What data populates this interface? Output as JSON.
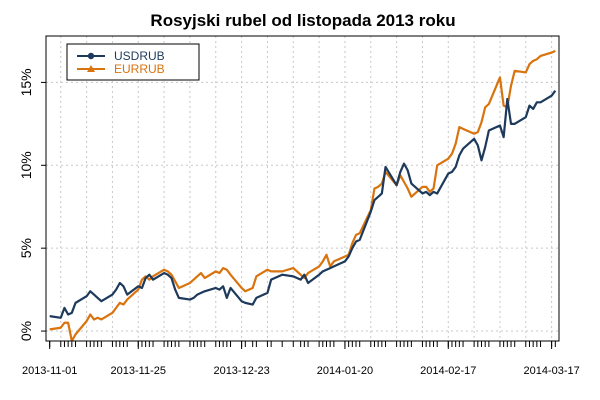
{
  "chart_data": {
    "type": "line",
    "title": "Rosyjski rubel od listopada 2013 roku",
    "xlabel": "",
    "ylabel": "",
    "y_ticks": [
      "0%",
      "5%",
      "10%",
      "15%"
    ],
    "y_tick_values": [
      0,
      5,
      10,
      15
    ],
    "ylim": [
      -0.6,
      17.8
    ],
    "x_tick_labels": [
      "2013-11-01",
      "2013-11-25",
      "2013-12-23",
      "2014-01-20",
      "2014-02-17",
      "2014-03-17"
    ],
    "x_tick_dates": [
      "2013-11-01",
      "2013-11-25",
      "2013-12-23",
      "2014-01-20",
      "2014-02-17",
      "2014-03-17"
    ],
    "x_range": [
      "2013-10-31",
      "2014-03-19"
    ],
    "grid": true,
    "legend_position": "top-left",
    "series": [
      {
        "name": "USDRUB",
        "color": "#1d3a5c",
        "marker": "circle",
        "values": [
          [
            "2013-11-01",
            0.9
          ],
          [
            "2013-11-04",
            0.8
          ],
          [
            "2013-11-05",
            1.4
          ],
          [
            "2013-11-06",
            1.0
          ],
          [
            "2013-11-07",
            1.1
          ],
          [
            "2013-11-08",
            1.7
          ],
          [
            "2013-11-11",
            2.1
          ],
          [
            "2013-11-12",
            2.4
          ],
          [
            "2013-11-13",
            2.2
          ],
          [
            "2013-11-14",
            2.0
          ],
          [
            "2013-11-15",
            1.8
          ],
          [
            "2013-11-18",
            2.2
          ],
          [
            "2013-11-19",
            2.5
          ],
          [
            "2013-11-20",
            2.9
          ],
          [
            "2013-11-21",
            2.7
          ],
          [
            "2013-11-22",
            2.2
          ],
          [
            "2013-11-25",
            2.7
          ],
          [
            "2013-11-26",
            2.6
          ],
          [
            "2013-11-27",
            3.2
          ],
          [
            "2013-11-28",
            3.4
          ],
          [
            "2013-11-29",
            3.1
          ],
          [
            "2013-12-02",
            3.5
          ],
          [
            "2013-12-03",
            3.4
          ],
          [
            "2013-12-04",
            3.2
          ],
          [
            "2013-12-05",
            2.5
          ],
          [
            "2013-12-06",
            2.0
          ],
          [
            "2013-12-09",
            1.9
          ],
          [
            "2013-12-10",
            2.0
          ],
          [
            "2013-12-11",
            2.2
          ],
          [
            "2013-12-12",
            2.3
          ],
          [
            "2013-12-13",
            2.4
          ],
          [
            "2013-12-16",
            2.6
          ],
          [
            "2013-12-17",
            2.5
          ],
          [
            "2013-12-18",
            2.7
          ],
          [
            "2013-12-19",
            2.0
          ],
          [
            "2013-12-20",
            2.6
          ],
          [
            "2013-12-23",
            1.8
          ],
          [
            "2013-12-24",
            1.7
          ],
          [
            "2013-12-26",
            1.6
          ],
          [
            "2013-12-27",
            2.0
          ],
          [
            "2013-12-30",
            2.3
          ],
          [
            "2013-12-31",
            3.1
          ],
          [
            "2014-01-03",
            3.4
          ],
          [
            "2014-01-06",
            3.3
          ],
          [
            "2014-01-08",
            3.1
          ],
          [
            "2014-01-09",
            3.4
          ],
          [
            "2014-01-10",
            2.9
          ],
          [
            "2014-01-13",
            3.4
          ],
          [
            "2014-01-14",
            3.6
          ],
          [
            "2014-01-15",
            3.7
          ],
          [
            "2014-01-16",
            3.8
          ],
          [
            "2014-01-17",
            3.9
          ],
          [
            "2014-01-20",
            4.2
          ],
          [
            "2014-01-21",
            4.5
          ],
          [
            "2014-01-22",
            5.0
          ],
          [
            "2014-01-23",
            5.4
          ],
          [
            "2014-01-24",
            5.5
          ],
          [
            "2014-01-27",
            7.2
          ],
          [
            "2014-01-28",
            7.9
          ],
          [
            "2014-01-29",
            8.1
          ],
          [
            "2014-01-30",
            8.3
          ],
          [
            "2014-01-31",
            9.9
          ],
          [
            "2014-02-03",
            8.8
          ],
          [
            "2014-02-04",
            9.6
          ],
          [
            "2014-02-05",
            10.1
          ],
          [
            "2014-02-06",
            9.7
          ],
          [
            "2014-02-07",
            8.9
          ],
          [
            "2014-02-10",
            8.3
          ],
          [
            "2014-02-11",
            8.4
          ],
          [
            "2014-02-12",
            8.2
          ],
          [
            "2014-02-13",
            8.4
          ],
          [
            "2014-02-14",
            8.3
          ],
          [
            "2014-02-17",
            9.5
          ],
          [
            "2014-02-18",
            9.6
          ],
          [
            "2014-02-19",
            9.9
          ],
          [
            "2014-02-20",
            10.6
          ],
          [
            "2014-02-21",
            11.0
          ],
          [
            "2014-02-24",
            11.6
          ],
          [
            "2014-02-25",
            11.2
          ],
          [
            "2014-02-26",
            10.3
          ],
          [
            "2014-02-27",
            11.1
          ],
          [
            "2014-02-28",
            12.1
          ],
          [
            "2014-03-03",
            12.4
          ],
          [
            "2014-03-04",
            11.7
          ],
          [
            "2014-03-05",
            14.0
          ],
          [
            "2014-03-06",
            12.5
          ],
          [
            "2014-03-07",
            12.5
          ],
          [
            "2014-03-10",
            12.9
          ],
          [
            "2014-03-11",
            13.6
          ],
          [
            "2014-03-12",
            13.4
          ],
          [
            "2014-03-13",
            13.8
          ],
          [
            "2014-03-14",
            13.8
          ],
          [
            "2014-03-17",
            14.2
          ],
          [
            "2014-03-18",
            14.5
          ]
        ]
      },
      {
        "name": "EURRUB",
        "color": "#d9730d",
        "marker": "triangle",
        "values": [
          [
            "2013-11-01",
            0.1
          ],
          [
            "2013-11-04",
            0.2
          ],
          [
            "2013-11-05",
            0.5
          ],
          [
            "2013-11-06",
            0.5
          ],
          [
            "2013-11-07",
            -0.6
          ],
          [
            "2013-11-08",
            -0.2
          ],
          [
            "2013-11-11",
            0.6
          ],
          [
            "2013-11-12",
            1.0
          ],
          [
            "2013-11-13",
            0.7
          ],
          [
            "2013-11-14",
            0.8
          ],
          [
            "2013-11-15",
            0.7
          ],
          [
            "2013-11-18",
            1.1
          ],
          [
            "2013-11-19",
            1.4
          ],
          [
            "2013-11-20",
            1.7
          ],
          [
            "2013-11-21",
            1.6
          ],
          [
            "2013-11-22",
            1.9
          ],
          [
            "2013-11-25",
            2.5
          ],
          [
            "2013-11-26",
            3.1
          ],
          [
            "2013-11-27",
            3.3
          ],
          [
            "2013-11-28",
            3.1
          ],
          [
            "2013-11-29",
            3.3
          ],
          [
            "2013-12-02",
            3.7
          ],
          [
            "2013-12-03",
            3.6
          ],
          [
            "2013-12-04",
            3.4
          ],
          [
            "2013-12-05",
            3.0
          ],
          [
            "2013-12-06",
            2.6
          ],
          [
            "2013-12-09",
            2.9
          ],
          [
            "2013-12-10",
            3.1
          ],
          [
            "2013-12-11",
            3.3
          ],
          [
            "2013-12-12",
            3.5
          ],
          [
            "2013-12-13",
            3.2
          ],
          [
            "2013-12-16",
            3.6
          ],
          [
            "2013-12-17",
            3.5
          ],
          [
            "2013-12-18",
            3.8
          ],
          [
            "2013-12-19",
            3.7
          ],
          [
            "2013-12-20",
            3.4
          ],
          [
            "2013-12-23",
            2.6
          ],
          [
            "2013-12-24",
            2.4
          ],
          [
            "2013-12-26",
            2.6
          ],
          [
            "2013-12-27",
            3.3
          ],
          [
            "2013-12-30",
            3.7
          ],
          [
            "2013-12-31",
            3.6
          ],
          [
            "2014-01-03",
            3.6
          ],
          [
            "2014-01-06",
            3.8
          ],
          [
            "2014-01-08",
            3.4
          ],
          [
            "2014-01-09",
            3.2
          ],
          [
            "2014-01-10",
            3.5
          ],
          [
            "2014-01-13",
            3.9
          ],
          [
            "2014-01-14",
            4.2
          ],
          [
            "2014-01-15",
            4.6
          ],
          [
            "2014-01-16",
            3.9
          ],
          [
            "2014-01-17",
            4.2
          ],
          [
            "2014-01-20",
            4.5
          ],
          [
            "2014-01-21",
            4.6
          ],
          [
            "2014-01-22",
            5.3
          ],
          [
            "2014-01-23",
            5.8
          ],
          [
            "2014-01-24",
            5.9
          ],
          [
            "2014-01-27",
            7.3
          ],
          [
            "2014-01-28",
            8.6
          ],
          [
            "2014-01-29",
            8.7
          ],
          [
            "2014-01-30",
            8.9
          ],
          [
            "2014-01-31",
            9.6
          ],
          [
            "2014-02-03",
            8.8
          ],
          [
            "2014-02-04",
            9.4
          ],
          [
            "2014-02-05",
            9.0
          ],
          [
            "2014-02-06",
            8.6
          ],
          [
            "2014-02-07",
            8.1
          ],
          [
            "2014-02-10",
            8.7
          ],
          [
            "2014-02-11",
            8.7
          ],
          [
            "2014-02-12",
            8.4
          ],
          [
            "2014-02-13",
            8.6
          ],
          [
            "2014-02-14",
            10.0
          ],
          [
            "2014-02-17",
            10.4
          ],
          [
            "2014-02-18",
            10.7
          ],
          [
            "2014-02-19",
            11.3
          ],
          [
            "2014-02-20",
            12.3
          ],
          [
            "2014-02-21",
            12.2
          ],
          [
            "2014-02-24",
            11.9
          ],
          [
            "2014-02-25",
            12.0
          ],
          [
            "2014-02-26",
            12.6
          ],
          [
            "2014-02-27",
            13.5
          ],
          [
            "2014-02-28",
            13.7
          ],
          [
            "2014-03-03",
            15.3
          ],
          [
            "2014-03-04",
            13.6
          ],
          [
            "2014-03-05",
            13.5
          ],
          [
            "2014-03-06",
            14.8
          ],
          [
            "2014-03-07",
            15.7
          ],
          [
            "2014-03-10",
            15.6
          ],
          [
            "2014-03-11",
            16.1
          ],
          [
            "2014-03-12",
            16.3
          ],
          [
            "2014-03-13",
            16.4
          ],
          [
            "2014-03-14",
            16.6
          ],
          [
            "2014-03-17",
            16.8
          ],
          [
            "2014-03-18",
            16.9
          ]
        ]
      }
    ]
  }
}
